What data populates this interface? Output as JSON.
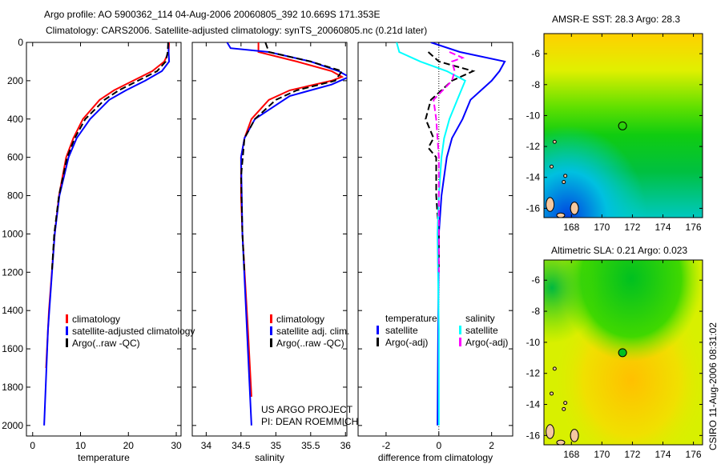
{
  "title_line1": "Argo profile: AO 5900362_114 04-Aug-2006 20060805_392 10.669S 171.353E",
  "title_line2": "Climatology: CARS2006. Satellite-adjusted climatology: synTS_20060805.nc (0.21d later)",
  "footer_vertical": "CSIRO 11-Aug-2006 08:31:02",
  "project_line1": "US ARGO PROJECT",
  "project_line2": "PI: DEAN ROEMMICH",
  "colors": {
    "climatology": "#ff0000",
    "satellite": "#0000ff",
    "argo": "#000000",
    "sal_satellite": "#00ffff",
    "sal_argo": "#ff00ff",
    "land": "#f5c8a0"
  },
  "chart_data": [
    {
      "type": "line",
      "xlabel": "temperature",
      "ylabel": "depth",
      "xlim": [
        -1.3,
        31
      ],
      "ylim": [
        2055,
        0
      ],
      "xticks": [
        0,
        10,
        20,
        30
      ],
      "yticks": [
        0,
        200,
        400,
        600,
        800,
        1000,
        1200,
        1400,
        1600,
        1800,
        2000
      ],
      "legend": [
        "climatology",
        "satellite-adjusted climatology",
        "Argo(..raw -QC)"
      ],
      "legend_placement": "bottom-right",
      "series": [
        {
          "name": "climatology",
          "color": "#ff0000",
          "dash": false,
          "points": [
            [
              28.5,
              0
            ],
            [
              28.4,
              50
            ],
            [
              27.5,
              100
            ],
            [
              25,
              150
            ],
            [
              21,
              200
            ],
            [
              17,
              250
            ],
            [
              14,
              300
            ],
            [
              10.5,
              400
            ],
            [
              8.5,
              500
            ],
            [
              7,
              600
            ],
            [
              5.5,
              800
            ],
            [
              4.6,
              1000
            ],
            [
              4,
              1200
            ],
            [
              3.4,
              1400
            ],
            [
              3,
              1600
            ],
            [
              2.8,
              1700
            ]
          ]
        },
        {
          "name": "satellite-adjusted climatology",
          "color": "#0000ff",
          "dash": false,
          "points": [
            [
              28.3,
              0
            ],
            [
              28.5,
              100
            ],
            [
              27,
              150
            ],
            [
              23.5,
              200
            ],
            [
              19.5,
              250
            ],
            [
              16,
              300
            ],
            [
              12,
              400
            ],
            [
              9.2,
              500
            ],
            [
              7.5,
              600
            ],
            [
              5.6,
              800
            ],
            [
              4.6,
              1000
            ],
            [
              3.2,
              1500
            ],
            [
              2.4,
              2000
            ]
          ]
        },
        {
          "name": "Argo(..raw -QC)",
          "color": "#000000",
          "dash": true,
          "points": [
            [
              28.3,
              0
            ],
            [
              28.2,
              50
            ],
            [
              27.8,
              100
            ],
            [
              26,
              150
            ],
            [
              22,
              200
            ],
            [
              18,
              250
            ],
            [
              15,
              300
            ],
            [
              11,
              400
            ],
            [
              8.8,
              500
            ],
            [
              7.2,
              600
            ],
            [
              5.5,
              800
            ],
            [
              4.5,
              1000
            ],
            [
              4,
              1200
            ]
          ]
        }
      ]
    },
    {
      "type": "line",
      "xlabel": "salinity",
      "ylabel": "depth",
      "xlim": [
        33.8,
        36.02
      ],
      "ylim": [
        2055,
        0
      ],
      "xticks": [
        34,
        34.5,
        35,
        35.5,
        36
      ],
      "yticks": [
        0,
        200,
        400,
        600,
        800,
        1000,
        1200,
        1400,
        1600,
        1800,
        2000
      ],
      "legend": [
        "climatology",
        "satellite adj. clim.",
        "Argo(..raw -QC)"
      ],
      "legend_placement": "bottom-right",
      "series": [
        {
          "name": "climatology",
          "color": "#ff0000",
          "dash": false,
          "points": [
            [
              34.75,
              0
            ],
            [
              34.75,
              50
            ],
            [
              35.3,
              100
            ],
            [
              35.8,
              150
            ],
            [
              35.95,
              180
            ],
            [
              35.8,
              200
            ],
            [
              35.2,
              250
            ],
            [
              34.9,
              300
            ],
            [
              34.65,
              400
            ],
            [
              34.55,
              500
            ],
            [
              34.5,
              600
            ],
            [
              34.5,
              800
            ],
            [
              34.52,
              1000
            ],
            [
              34.6,
              1500
            ],
            [
              34.65,
              1850
            ]
          ]
        },
        {
          "name": "satellite adj. clim.",
          "color": "#0000ff",
          "dash": false,
          "points": [
            [
              34.3,
              0
            ],
            [
              34.35,
              30
            ],
            [
              34.9,
              50
            ],
            [
              35.5,
              100
            ],
            [
              35.9,
              150
            ],
            [
              36.05,
              180
            ],
            [
              35.8,
              220
            ],
            [
              35.2,
              280
            ],
            [
              34.7,
              400
            ],
            [
              34.55,
              500
            ],
            [
              34.5,
              600
            ],
            [
              34.52,
              1000
            ],
            [
              34.65,
              2000
            ]
          ]
        },
        {
          "name": "Argo(..raw -QC)",
          "color": "#000000",
          "dash": true,
          "points": [
            [
              34.85,
              0
            ],
            [
              34.9,
              50
            ],
            [
              35.5,
              100
            ],
            [
              35.95,
              150
            ],
            [
              35.85,
              200
            ],
            [
              35.3,
              250
            ],
            [
              35.0,
              300
            ],
            [
              34.7,
              400
            ],
            [
              34.55,
              500
            ],
            [
              34.5,
              700
            ],
            [
              34.52,
              1000
            ],
            [
              34.55,
              1200
            ]
          ]
        }
      ]
    },
    {
      "type": "line",
      "xlabel": "difference from climatology",
      "ylabel": "depth",
      "xlim": [
        -3.06,
        2.8
      ],
      "ylim": [
        2055,
        0
      ],
      "xticks": [
        -2,
        0,
        2
      ],
      "yticks": [
        0,
        200,
        400,
        600,
        800,
        1000,
        1200,
        1400,
        1600,
        1800,
        2000
      ],
      "legend": [
        "temperature",
        "satellite",
        "Argo(-adj)",
        "salinity",
        "satellite",
        "Argo(-adj)"
      ],
      "legend_placement": "bottom",
      "series": [
        {
          "name": "temperature satellite",
          "color": "#0000ff",
          "dash": false,
          "points": [
            [
              -0.3,
              0
            ],
            [
              0.8,
              50
            ],
            [
              2.5,
              100
            ],
            [
              2.3,
              150
            ],
            [
              2,
              200
            ],
            [
              1.2,
              300
            ],
            [
              0.9,
              400
            ],
            [
              0.5,
              500
            ],
            [
              0.3,
              600
            ],
            [
              0.1,
              800
            ],
            [
              0,
              1000
            ],
            [
              -0.05,
              2000
            ]
          ]
        },
        {
          "name": "temperature Argo(-adj)",
          "color": "#000000",
          "dash": true,
          "points": [
            [
              -0.4,
              50
            ],
            [
              0,
              100
            ],
            [
              1.3,
              150
            ],
            [
              0.5,
              200
            ],
            [
              -0.3,
              300
            ],
            [
              -0.5,
              400
            ],
            [
              -0.2,
              500
            ],
            [
              -0.4,
              550
            ],
            [
              -0.1,
              600
            ],
            [
              -0.1,
              800
            ],
            [
              0,
              1000
            ],
            [
              0,
              1200
            ]
          ]
        },
        {
          "name": "salinity satellite",
          "color": "#00ffff",
          "dash": false,
          "points": [
            [
              -1.6,
              0
            ],
            [
              -1.5,
              50
            ],
            [
              -0.7,
              100
            ],
            [
              0.3,
              150
            ],
            [
              1.0,
              200
            ],
            [
              0.7,
              300
            ],
            [
              0.4,
              400
            ],
            [
              0.2,
              500
            ],
            [
              0.1,
              600
            ],
            [
              0,
              800
            ],
            [
              -0.05,
              1000
            ],
            [
              0,
              1500
            ],
            [
              0,
              2000
            ]
          ]
        },
        {
          "name": "salinity Argo(-adj)",
          "color": "#ff00ff",
          "dash": true,
          "points": [
            [
              0.4,
              50
            ],
            [
              0.9,
              80
            ],
            [
              0.5,
              100
            ],
            [
              0.6,
              150
            ],
            [
              0.5,
              200
            ],
            [
              -0.2,
              300
            ],
            [
              -0.1,
              400
            ],
            [
              0,
              600
            ],
            [
              0,
              800
            ],
            [
              0,
              1200
            ]
          ]
        }
      ]
    },
    {
      "type": "heatmap",
      "title": "AMSR-E SST: 28.3 Argo: 28.3",
      "xlim": [
        166.2,
        176.6
      ],
      "ylim": [
        -16.6,
        -4.7
      ],
      "xticks": [
        168,
        170,
        172,
        174,
        176
      ],
      "yticks": [
        -6,
        -8,
        -10,
        -12,
        -14,
        -16
      ],
      "marker": [
        171.353,
        -10.669
      ]
    },
    {
      "type": "heatmap",
      "title": "Altimetric SLA: 0.21 Argo: 0.023",
      "xlim": [
        166.2,
        176.6
      ],
      "ylim": [
        -16.6,
        -4.7
      ],
      "xticks": [
        168,
        170,
        172,
        174,
        176
      ],
      "yticks": [
        -6,
        -8,
        -10,
        -12,
        -14,
        -16
      ],
      "marker": [
        171.353,
        -10.669
      ]
    }
  ]
}
